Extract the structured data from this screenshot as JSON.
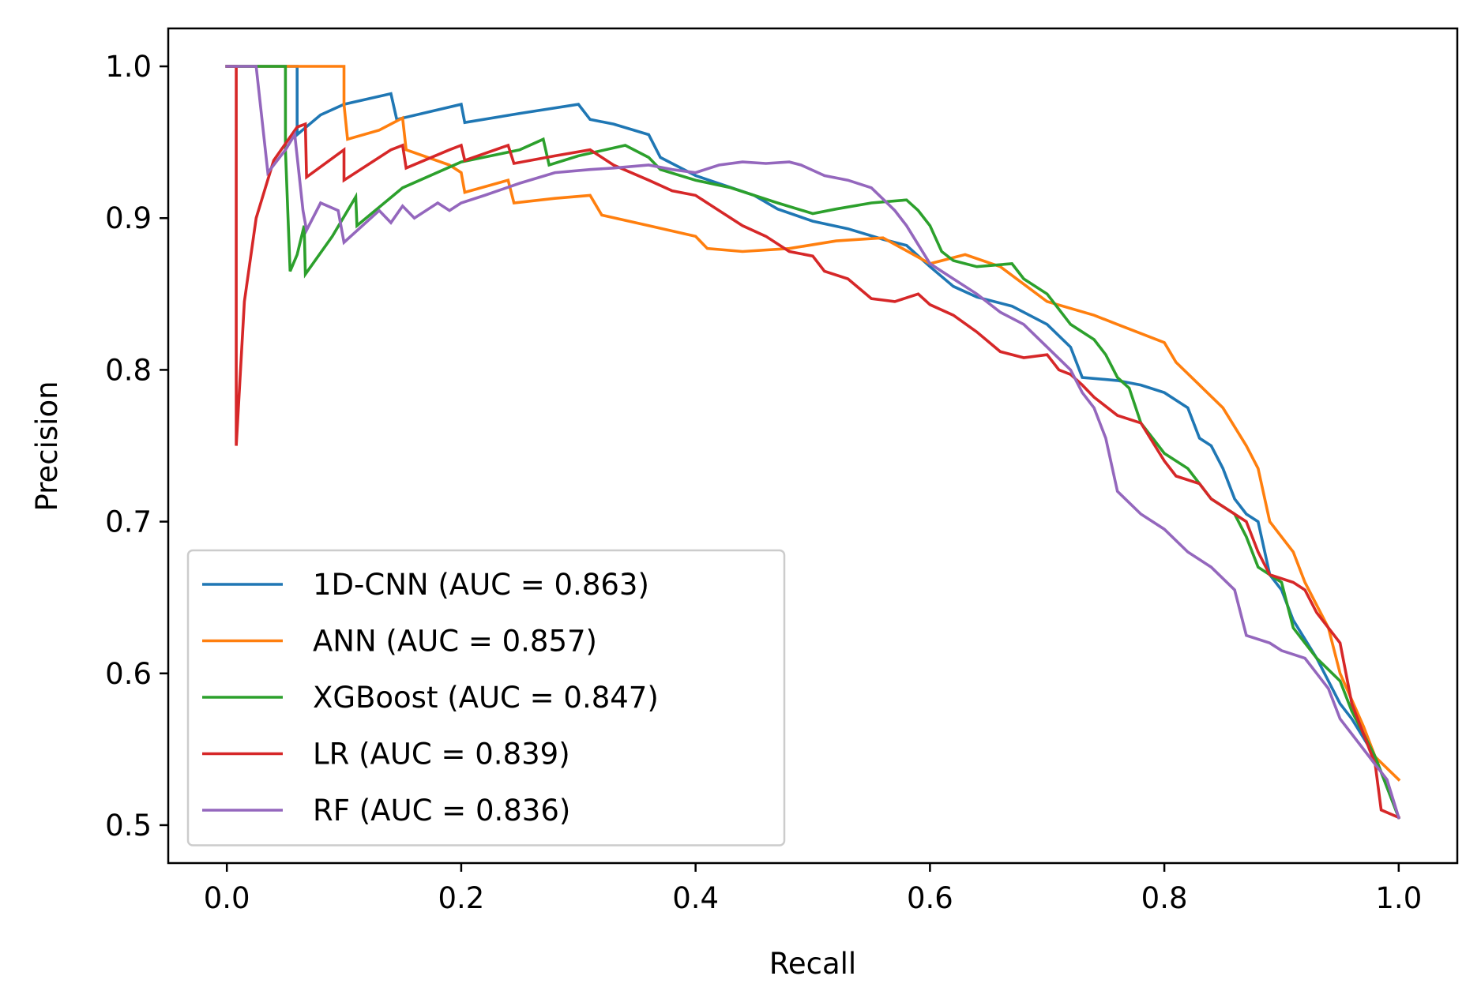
{
  "chart_data": {
    "type": "line",
    "title": "",
    "xlabel": "Recall",
    "ylabel": "Precision",
    "xlim": [
      -0.05,
      1.05
    ],
    "ylim": [
      0.475,
      1.025
    ],
    "xticks": [
      0.0,
      0.2,
      0.4,
      0.6,
      0.8,
      1.0
    ],
    "xtick_labels": [
      "0.0",
      "0.2",
      "0.4",
      "0.6",
      "0.8",
      "1.0"
    ],
    "yticks": [
      0.5,
      0.6,
      0.7,
      0.8,
      0.9,
      1.0
    ],
    "ytick_labels": [
      "0.5",
      "0.6",
      "0.7",
      "0.8",
      "0.9",
      "1.0"
    ],
    "grid": false,
    "legend_position": "lower-left",
    "series": [
      {
        "name": "1D-CNN (AUC = 0.863)",
        "color": "#1f77b4",
        "points": [
          [
            0.0,
            1.0
          ],
          [
            0.06,
            1.0
          ],
          [
            0.06,
            0.955
          ],
          [
            0.08,
            0.968
          ],
          [
            0.1,
            0.975
          ],
          [
            0.14,
            0.982
          ],
          [
            0.145,
            0.965
          ],
          [
            0.2,
            0.975
          ],
          [
            0.203,
            0.963
          ],
          [
            0.25,
            0.969
          ],
          [
            0.3,
            0.975
          ],
          [
            0.31,
            0.965
          ],
          [
            0.33,
            0.962
          ],
          [
            0.36,
            0.955
          ],
          [
            0.37,
            0.94
          ],
          [
            0.4,
            0.928
          ],
          [
            0.45,
            0.915
          ],
          [
            0.47,
            0.906
          ],
          [
            0.5,
            0.898
          ],
          [
            0.53,
            0.893
          ],
          [
            0.56,
            0.886
          ],
          [
            0.58,
            0.882
          ],
          [
            0.6,
            0.868
          ],
          [
            0.62,
            0.855
          ],
          [
            0.64,
            0.848
          ],
          [
            0.67,
            0.842
          ],
          [
            0.7,
            0.83
          ],
          [
            0.72,
            0.815
          ],
          [
            0.73,
            0.795
          ],
          [
            0.76,
            0.793
          ],
          [
            0.78,
            0.79
          ],
          [
            0.8,
            0.785
          ],
          [
            0.82,
            0.775
          ],
          [
            0.83,
            0.755
          ],
          [
            0.84,
            0.75
          ],
          [
            0.85,
            0.735
          ],
          [
            0.86,
            0.715
          ],
          [
            0.87,
            0.705
          ],
          [
            0.88,
            0.7
          ],
          [
            0.89,
            0.665
          ],
          [
            0.9,
            0.655
          ],
          [
            0.91,
            0.635
          ],
          [
            0.93,
            0.61
          ],
          [
            0.95,
            0.58
          ],
          [
            0.96,
            0.57
          ],
          [
            0.98,
            0.545
          ],
          [
            1.0,
            0.505
          ]
        ]
      },
      {
        "name": "ANN (AUC = 0.857)",
        "color": "#ff7f0e",
        "points": [
          [
            0.0,
            1.0
          ],
          [
            0.1,
            1.0
          ],
          [
            0.1,
            0.975
          ],
          [
            0.103,
            0.952
          ],
          [
            0.13,
            0.958
          ],
          [
            0.15,
            0.966
          ],
          [
            0.153,
            0.945
          ],
          [
            0.19,
            0.935
          ],
          [
            0.2,
            0.93
          ],
          [
            0.203,
            0.917
          ],
          [
            0.24,
            0.925
          ],
          [
            0.245,
            0.91
          ],
          [
            0.28,
            0.913
          ],
          [
            0.31,
            0.915
          ],
          [
            0.32,
            0.902
          ],
          [
            0.36,
            0.895
          ],
          [
            0.4,
            0.888
          ],
          [
            0.41,
            0.88
          ],
          [
            0.44,
            0.878
          ],
          [
            0.48,
            0.88
          ],
          [
            0.52,
            0.885
          ],
          [
            0.56,
            0.887
          ],
          [
            0.6,
            0.87
          ],
          [
            0.63,
            0.876
          ],
          [
            0.66,
            0.868
          ],
          [
            0.7,
            0.845
          ],
          [
            0.74,
            0.836
          ],
          [
            0.76,
            0.83
          ],
          [
            0.78,
            0.824
          ],
          [
            0.8,
            0.818
          ],
          [
            0.81,
            0.805
          ],
          [
            0.83,
            0.79
          ],
          [
            0.85,
            0.775
          ],
          [
            0.87,
            0.75
          ],
          [
            0.88,
            0.735
          ],
          [
            0.89,
            0.7
          ],
          [
            0.91,
            0.68
          ],
          [
            0.92,
            0.66
          ],
          [
            0.94,
            0.63
          ],
          [
            0.95,
            0.6
          ],
          [
            0.97,
            0.565
          ],
          [
            0.98,
            0.545
          ],
          [
            1.0,
            0.53
          ]
        ]
      },
      {
        "name": "XGBoost (AUC = 0.847)",
        "color": "#2ca02c",
        "points": [
          [
            0.0,
            1.0
          ],
          [
            0.05,
            1.0
          ],
          [
            0.05,
            0.945
          ],
          [
            0.052,
            0.905
          ],
          [
            0.054,
            0.865
          ],
          [
            0.06,
            0.876
          ],
          [
            0.066,
            0.895
          ],
          [
            0.067,
            0.863
          ],
          [
            0.09,
            0.888
          ],
          [
            0.11,
            0.914
          ],
          [
            0.111,
            0.895
          ],
          [
            0.15,
            0.92
          ],
          [
            0.2,
            0.937
          ],
          [
            0.25,
            0.945
          ],
          [
            0.27,
            0.952
          ],
          [
            0.275,
            0.935
          ],
          [
            0.3,
            0.941
          ],
          [
            0.34,
            0.948
          ],
          [
            0.36,
            0.94
          ],
          [
            0.37,
            0.932
          ],
          [
            0.4,
            0.925
          ],
          [
            0.43,
            0.92
          ],
          [
            0.45,
            0.915
          ],
          [
            0.47,
            0.91
          ],
          [
            0.5,
            0.903
          ],
          [
            0.52,
            0.906
          ],
          [
            0.55,
            0.91
          ],
          [
            0.58,
            0.912
          ],
          [
            0.59,
            0.905
          ],
          [
            0.6,
            0.895
          ],
          [
            0.61,
            0.878
          ],
          [
            0.62,
            0.872
          ],
          [
            0.64,
            0.868
          ],
          [
            0.67,
            0.87
          ],
          [
            0.68,
            0.86
          ],
          [
            0.7,
            0.85
          ],
          [
            0.72,
            0.83
          ],
          [
            0.74,
            0.82
          ],
          [
            0.75,
            0.81
          ],
          [
            0.76,
            0.795
          ],
          [
            0.77,
            0.788
          ],
          [
            0.78,
            0.765
          ],
          [
            0.79,
            0.755
          ],
          [
            0.8,
            0.745
          ],
          [
            0.82,
            0.735
          ],
          [
            0.84,
            0.715
          ],
          [
            0.86,
            0.705
          ],
          [
            0.87,
            0.69
          ],
          [
            0.88,
            0.67
          ],
          [
            0.9,
            0.66
          ],
          [
            0.91,
            0.63
          ],
          [
            0.93,
            0.61
          ],
          [
            0.95,
            0.595
          ],
          [
            0.96,
            0.575
          ],
          [
            0.97,
            0.56
          ],
          [
            0.98,
            0.545
          ],
          [
            1.0,
            0.505
          ]
        ]
      },
      {
        "name": "LR (AUC = 0.839)",
        "color": "#d62728",
        "points": [
          [
            0.0,
            1.0
          ],
          [
            0.008,
            1.0
          ],
          [
            0.008,
            0.75
          ],
          [
            0.015,
            0.845
          ],
          [
            0.025,
            0.9
          ],
          [
            0.04,
            0.938
          ],
          [
            0.06,
            0.96
          ],
          [
            0.067,
            0.962
          ],
          [
            0.068,
            0.927
          ],
          [
            0.1,
            0.945
          ],
          [
            0.1,
            0.925
          ],
          [
            0.14,
            0.945
          ],
          [
            0.15,
            0.948
          ],
          [
            0.153,
            0.933
          ],
          [
            0.19,
            0.945
          ],
          [
            0.2,
            0.948
          ],
          [
            0.203,
            0.938
          ],
          [
            0.24,
            0.948
          ],
          [
            0.245,
            0.936
          ],
          [
            0.28,
            0.941
          ],
          [
            0.31,
            0.945
          ],
          [
            0.33,
            0.935
          ],
          [
            0.36,
            0.925
          ],
          [
            0.38,
            0.918
          ],
          [
            0.4,
            0.915
          ],
          [
            0.42,
            0.905
          ],
          [
            0.44,
            0.895
          ],
          [
            0.46,
            0.888
          ],
          [
            0.48,
            0.878
          ],
          [
            0.5,
            0.875
          ],
          [
            0.51,
            0.865
          ],
          [
            0.53,
            0.86
          ],
          [
            0.55,
            0.847
          ],
          [
            0.57,
            0.845
          ],
          [
            0.59,
            0.85
          ],
          [
            0.6,
            0.843
          ],
          [
            0.62,
            0.836
          ],
          [
            0.64,
            0.825
          ],
          [
            0.66,
            0.812
          ],
          [
            0.68,
            0.808
          ],
          [
            0.7,
            0.81
          ],
          [
            0.71,
            0.8
          ],
          [
            0.72,
            0.797
          ],
          [
            0.73,
            0.79
          ],
          [
            0.74,
            0.782
          ],
          [
            0.76,
            0.77
          ],
          [
            0.78,
            0.765
          ],
          [
            0.8,
            0.74
          ],
          [
            0.81,
            0.73
          ],
          [
            0.83,
            0.725
          ],
          [
            0.84,
            0.715
          ],
          [
            0.85,
            0.71
          ],
          [
            0.86,
            0.705
          ],
          [
            0.87,
            0.7
          ],
          [
            0.88,
            0.68
          ],
          [
            0.89,
            0.665
          ],
          [
            0.91,
            0.66
          ],
          [
            0.92,
            0.655
          ],
          [
            0.93,
            0.64
          ],
          [
            0.95,
            0.62
          ],
          [
            0.96,
            0.58
          ],
          [
            0.97,
            0.56
          ],
          [
            0.98,
            0.54
          ],
          [
            0.985,
            0.51
          ],
          [
            1.0,
            0.505
          ]
        ]
      },
      {
        "name": "RF (AUC = 0.836)",
        "color": "#9467bd",
        "points": [
          [
            0.0,
            1.0
          ],
          [
            0.025,
            1.0
          ],
          [
            0.035,
            0.93
          ],
          [
            0.05,
            0.945
          ],
          [
            0.058,
            0.955
          ],
          [
            0.065,
            0.905
          ],
          [
            0.068,
            0.892
          ],
          [
            0.08,
            0.91
          ],
          [
            0.095,
            0.905
          ],
          [
            0.1,
            0.884
          ],
          [
            0.13,
            0.905
          ],
          [
            0.14,
            0.897
          ],
          [
            0.15,
            0.908
          ],
          [
            0.16,
            0.9
          ],
          [
            0.18,
            0.91
          ],
          [
            0.19,
            0.905
          ],
          [
            0.2,
            0.91
          ],
          [
            0.22,
            0.915
          ],
          [
            0.25,
            0.923
          ],
          [
            0.28,
            0.93
          ],
          [
            0.31,
            0.932
          ],
          [
            0.33,
            0.933
          ],
          [
            0.36,
            0.935
          ],
          [
            0.38,
            0.932
          ],
          [
            0.4,
            0.93
          ],
          [
            0.42,
            0.935
          ],
          [
            0.44,
            0.937
          ],
          [
            0.46,
            0.936
          ],
          [
            0.48,
            0.937
          ],
          [
            0.49,
            0.935
          ],
          [
            0.51,
            0.928
          ],
          [
            0.53,
            0.925
          ],
          [
            0.55,
            0.92
          ],
          [
            0.57,
            0.905
          ],
          [
            0.58,
            0.895
          ],
          [
            0.6,
            0.87
          ],
          [
            0.62,
            0.86
          ],
          [
            0.64,
            0.85
          ],
          [
            0.66,
            0.838
          ],
          [
            0.68,
            0.83
          ],
          [
            0.7,
            0.815
          ],
          [
            0.72,
            0.8
          ],
          [
            0.73,
            0.785
          ],
          [
            0.74,
            0.775
          ],
          [
            0.75,
            0.755
          ],
          [
            0.76,
            0.72
          ],
          [
            0.78,
            0.705
          ],
          [
            0.8,
            0.695
          ],
          [
            0.82,
            0.68
          ],
          [
            0.84,
            0.67
          ],
          [
            0.86,
            0.655
          ],
          [
            0.87,
            0.625
          ],
          [
            0.89,
            0.62
          ],
          [
            0.9,
            0.615
          ],
          [
            0.92,
            0.61
          ],
          [
            0.93,
            0.6
          ],
          [
            0.94,
            0.59
          ],
          [
            0.95,
            0.57
          ],
          [
            0.96,
            0.56
          ],
          [
            0.97,
            0.55
          ],
          [
            0.98,
            0.54
          ],
          [
            0.99,
            0.53
          ],
          [
            1.0,
            0.505
          ]
        ]
      }
    ]
  }
}
